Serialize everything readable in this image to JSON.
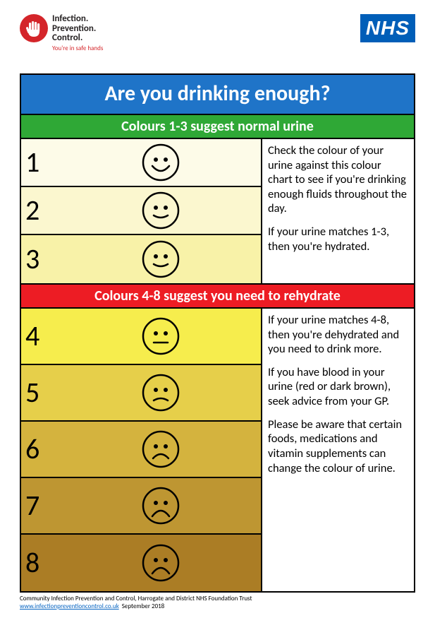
{
  "header": {
    "ipc_lines": [
      "Infection.",
      "Prevention.",
      "Control."
    ],
    "ipc_tagline": "You're in safe hands",
    "nhs": "NHS"
  },
  "title": {
    "text": "Are you drinking enough?",
    "bg_color": "#1f74c8"
  },
  "section_normal": {
    "label": "Colours 1-3 suggest normal urine",
    "bg_color": "#2fa836",
    "rows": [
      {
        "num": "1",
        "bg": "#fdfbe8",
        "face": "smile-big"
      },
      {
        "num": "2",
        "bg": "#fbf7cf",
        "face": "smile"
      },
      {
        "num": "3",
        "bg": "#f8f2a8",
        "face": "smile"
      }
    ],
    "desc_paras": [
      "Check the colour of your urine against this colour chart to see if you're drinking enough fluids throughout the day.",
      "If your urine matches 1-3, then you're hydrated."
    ]
  },
  "section_rehydrate": {
    "label": "Colours 4-8 suggest you need to rehydrate",
    "bg_color": "#ed1c24",
    "rows": [
      {
        "num": "4",
        "bg": "#f6ed4d",
        "face": "neutral"
      },
      {
        "num": "5",
        "bg": "#e6cf4a",
        "face": "slight-frown"
      },
      {
        "num": "6",
        "bg": "#d4b33e",
        "face": "frown"
      },
      {
        "num": "7",
        "bg": "#be9632",
        "face": "sad"
      },
      {
        "num": "8",
        "bg": "#ab7d25",
        "face": "sad"
      }
    ],
    "desc_paras": [
      "If your urine matches 4-8, then you're dehydrated and you need to drink more.",
      "If you have blood in your urine (red or dark brown), seek advice from your GP.",
      "Please be aware that certain foods, medications and vitamin supplements can change the colour of urine."
    ]
  },
  "footer": {
    "line1": "Community Infection Prevention and Control, Harrogate and District NHS Foundation Trust",
    "link": "www.infectionpreventioncontrol.co.uk",
    "date": "September 2018"
  },
  "face_stroke": "#000000",
  "face_stroke_width": 2.5
}
